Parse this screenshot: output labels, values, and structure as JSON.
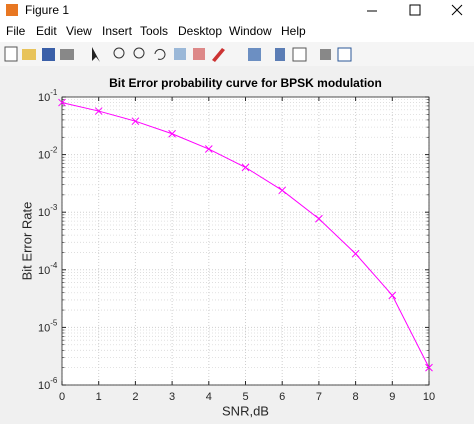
{
  "window": {
    "title": "Figure 1",
    "menu": [
      "File",
      "Edit",
      "View",
      "Insert",
      "Tools",
      "Desktop",
      "Window",
      "Help"
    ]
  },
  "chart_data": {
    "type": "line",
    "title": "Bit Error probability curve for BPSK modulation",
    "x_label": "SNR,dB",
    "y_label": "Bit Error Rate",
    "x": [
      0,
      1,
      2,
      3,
      4,
      5,
      6,
      7,
      8,
      9,
      10
    ],
    "series": [
      {
        "color": "#ff00ff",
        "marker": "x",
        "values": [
          0.08,
          0.057,
          0.038,
          0.023,
          0.0125,
          0.006,
          0.0024,
          0.00077,
          0.00019,
          3.6e-05,
          2e-06
        ]
      }
    ],
    "xlim": [
      0,
      10
    ],
    "xticks": [
      0,
      1,
      2,
      3,
      4,
      5,
      6,
      7,
      8,
      9,
      10
    ],
    "ylim": [
      1e-06,
      0.1
    ],
    "yscale": "log",
    "yticks": [
      {
        "value": 1e-06,
        "label": "10",
        "exponent": "-6"
      },
      {
        "value": 1e-05,
        "label": "10",
        "exponent": "-5"
      },
      {
        "value": 0.0001,
        "label": "10",
        "exponent": "-4"
      },
      {
        "value": 0.001,
        "label": "10",
        "exponent": "-3"
      },
      {
        "value": 0.01,
        "label": "10",
        "exponent": "-2"
      },
      {
        "value": 0.1,
        "label": "10",
        "exponent": "-1"
      }
    ],
    "grid": true,
    "minor_grid": true
  }
}
